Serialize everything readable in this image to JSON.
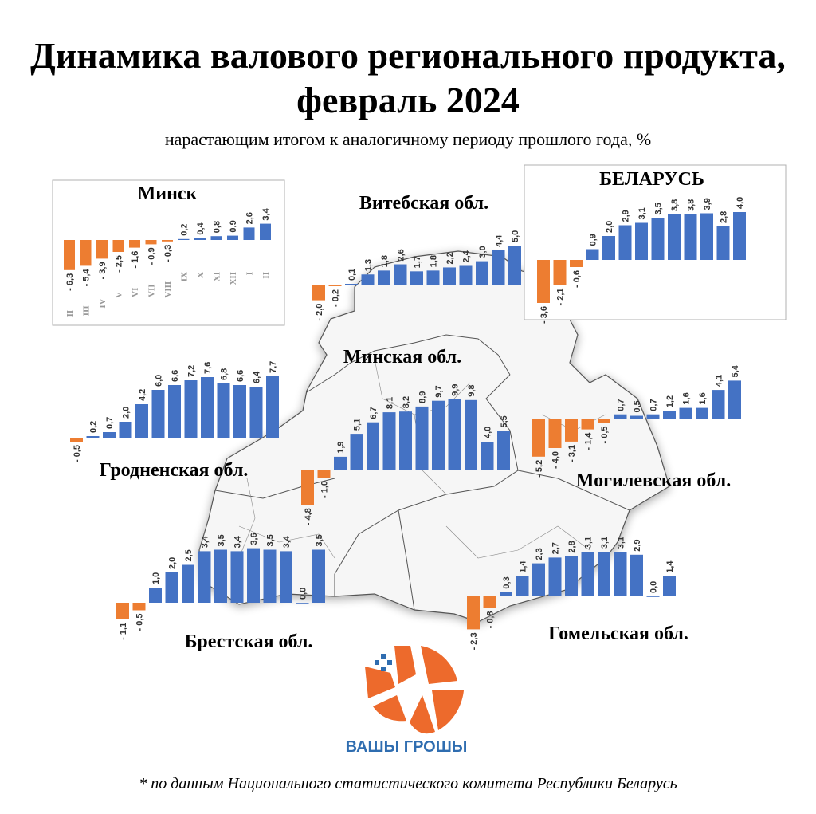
{
  "title": "Динамика валового регионального продукта, февраль 2024",
  "subtitle": "нарастающим итогом к аналогичному периоду прошлого года, %",
  "footnote": "* по данным Национального статистического комитета Республики Беларусь",
  "logo_text": "ВАШЫ ГРОШЫ",
  "colors": {
    "positive": "#4472c4",
    "negative": "#ed7d31",
    "map_fill": "#f6f6f6",
    "map_stroke": "#555555",
    "frame": "#b0b0b0"
  },
  "chart_data": [
    {
      "type": "bar",
      "title": "Минск",
      "categories": [
        "II",
        "III",
        "IV",
        "V",
        "VI",
        "VII",
        "VIII",
        "IX",
        "X",
        "XI",
        "XII",
        "I",
        "II"
      ],
      "values": [
        -6.3,
        -5.4,
        -3.9,
        -2.5,
        -1.6,
        -0.9,
        -0.3,
        0.2,
        0.4,
        0.8,
        0.9,
        2.6,
        3.4
      ],
      "value_labels": [
        "- 6,3",
        "- 5,4",
        "- 3,9",
        "- 2,5",
        "- 1,6",
        "- 0,9",
        "- 0,3",
        "0,2",
        "0,4",
        "0,8",
        "0,9",
        "2,6",
        "3,4"
      ],
      "framed": true
    },
    {
      "type": "bar",
      "title": "Витебская обл.",
      "values": [
        -2.0,
        -0.2,
        0.1,
        1.3,
        1.8,
        2.6,
        1.7,
        1.8,
        2.2,
        2.4,
        3.0,
        4.4,
        5.0
      ],
      "value_labels": [
        "- 2,0",
        "- 0,2",
        "0,1",
        "1,3",
        "1,8",
        "2,6",
        "1,7",
        "1,8",
        "2,2",
        "2,4",
        "3,0",
        "4,4",
        "5,0"
      ]
    },
    {
      "type": "bar",
      "title": "БЕЛАРУСЬ",
      "values": [
        -3.6,
        -2.1,
        -0.6,
        0.9,
        2.0,
        2.9,
        3.1,
        3.5,
        3.8,
        3.8,
        3.9,
        2.8,
        4.0
      ],
      "value_labels": [
        "- 3,6",
        "- 2,1",
        "- 0,6",
        "0,9",
        "2,0",
        "2,9",
        "3,1",
        "3,5",
        "3,8",
        "3,8",
        "3,9",
        "2,8",
        "4,0"
      ],
      "framed": true
    },
    {
      "type": "bar",
      "title": "Гродненская обл.",
      "values": [
        -0.5,
        0.2,
        0.7,
        2.0,
        4.2,
        6.0,
        6.6,
        7.2,
        7.6,
        6.8,
        6.6,
        6.4,
        7.7
      ],
      "value_labels": [
        "- 0,5",
        "0,2",
        "0,7",
        "2,0",
        "4,2",
        "6,0",
        "6,6",
        "7,2",
        "7,6",
        "6,8",
        "6,6",
        "6,4",
        "7,7"
      ]
    },
    {
      "type": "bar",
      "title": "Минская обл.",
      "values": [
        -4.8,
        -1.0,
        1.9,
        5.1,
        6.7,
        8.1,
        8.2,
        8.9,
        9.7,
        9.9,
        9.8,
        4.0,
        5.5
      ],
      "value_labels": [
        "- 4,8",
        "- 1,0",
        "1,9",
        "5,1",
        "6,7",
        "8,1",
        "8,2",
        "8,9",
        "9,7",
        "9,9",
        "9,8",
        "4,0",
        "5,5"
      ]
    },
    {
      "type": "bar",
      "title": "Могилевская обл.",
      "values": [
        -5.2,
        -4.0,
        -3.1,
        -1.4,
        -0.5,
        0.7,
        0.5,
        0.7,
        1.2,
        1.6,
        1.6,
        4.1,
        5.4
      ],
      "value_labels": [
        "- 5,2",
        "- 4,0",
        "- 3,1",
        "- 1,4",
        "- 0,5",
        "0,7",
        "0,5",
        "0,7",
        "1,2",
        "1,6",
        "1,6",
        "4,1",
        "5,4"
      ]
    },
    {
      "type": "bar",
      "title": "Брестская обл.",
      "values": [
        -1.1,
        -0.5,
        1.0,
        2.0,
        2.5,
        3.4,
        3.5,
        3.4,
        3.6,
        3.5,
        3.4,
        0.0,
        3.5
      ],
      "value_labels": [
        "- 1,1",
        "- 0,5",
        "1,0",
        "2,0",
        "2,5",
        "3,4",
        "3,5",
        "3,4",
        "3,6",
        "3,5",
        "3,4",
        "0,0",
        "3,5"
      ]
    },
    {
      "type": "bar",
      "title": "Гомельская обл.",
      "values": [
        -2.3,
        -0.8,
        0.3,
        1.4,
        2.3,
        2.7,
        2.8,
        3.1,
        3.1,
        3.1,
        2.9,
        0.0,
        1.4
      ],
      "value_labels": [
        "- 2,3",
        "- 0,8",
        "0,3",
        "1,4",
        "2,3",
        "2,7",
        "2,8",
        "3,1",
        "3,1",
        "3,1",
        "2,9",
        "0,0",
        "1,4"
      ]
    }
  ]
}
